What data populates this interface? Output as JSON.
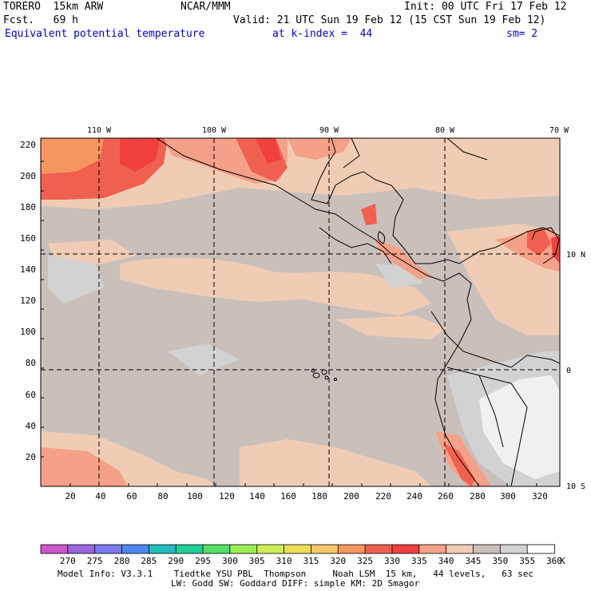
{
  "header": {
    "model": "TORERO  15km ARW",
    "org": "NCAR/MMM",
    "init": "Init: 00 UTC Fri 17 Feb 12",
    "fcst": "Fcst.   69 h",
    "valid": "Valid: 21 UTC Sun 19 Feb 12 (15 CST Sun 19 Feb 12)",
    "field": "Equivalent potential temperature",
    "level": "at k-index =  44",
    "smooth": "sm= 2"
  },
  "axes": {
    "x_ticks": [
      "20",
      "40",
      "60",
      "80",
      "100",
      "120",
      "140",
      "160",
      "180",
      "200",
      "220",
      "240",
      "260",
      "280",
      "300",
      "320"
    ],
    "y_ticks": [
      "20",
      "40",
      "60",
      "80",
      "100",
      "120",
      "140",
      "160",
      "180",
      "200",
      "220"
    ],
    "lon_labels": [
      "110 W",
      "100 W",
      "90 W",
      "80 W",
      "70 W"
    ],
    "lat_labels": [
      "10 N",
      "0",
      "10 S"
    ]
  },
  "colorbar": {
    "unit": "K",
    "ticks": [
      "270",
      "275",
      "280",
      "285",
      "290",
      "295",
      "300",
      "305",
      "310",
      "315",
      "320",
      "325",
      "330",
      "335",
      "340",
      "345",
      "350",
      "355",
      "360"
    ],
    "colors": [
      "#cc55cc",
      "#9966dd",
      "#7a7aee",
      "#4d88ee",
      "#22bbbb",
      "#22cc99",
      "#55dd66",
      "#99ee55",
      "#ccee55",
      "#eedd55",
      "#f5c56a",
      "#f5955f",
      "#f06050",
      "#f04040",
      "#f5a088",
      "#f0ccb4",
      "#c9c0bc",
      "#d2d2d2",
      "#ffffff"
    ]
  },
  "footer": {
    "line1": "Model Info: V3.3.1    Tiedtke YSU PBL  Thompson     Noah LSM  15 km,   44 levels,   63 sec",
    "line2": "LW: Godd SW: Goddard DIFF: simple KM: 2D Smagor"
  }
}
